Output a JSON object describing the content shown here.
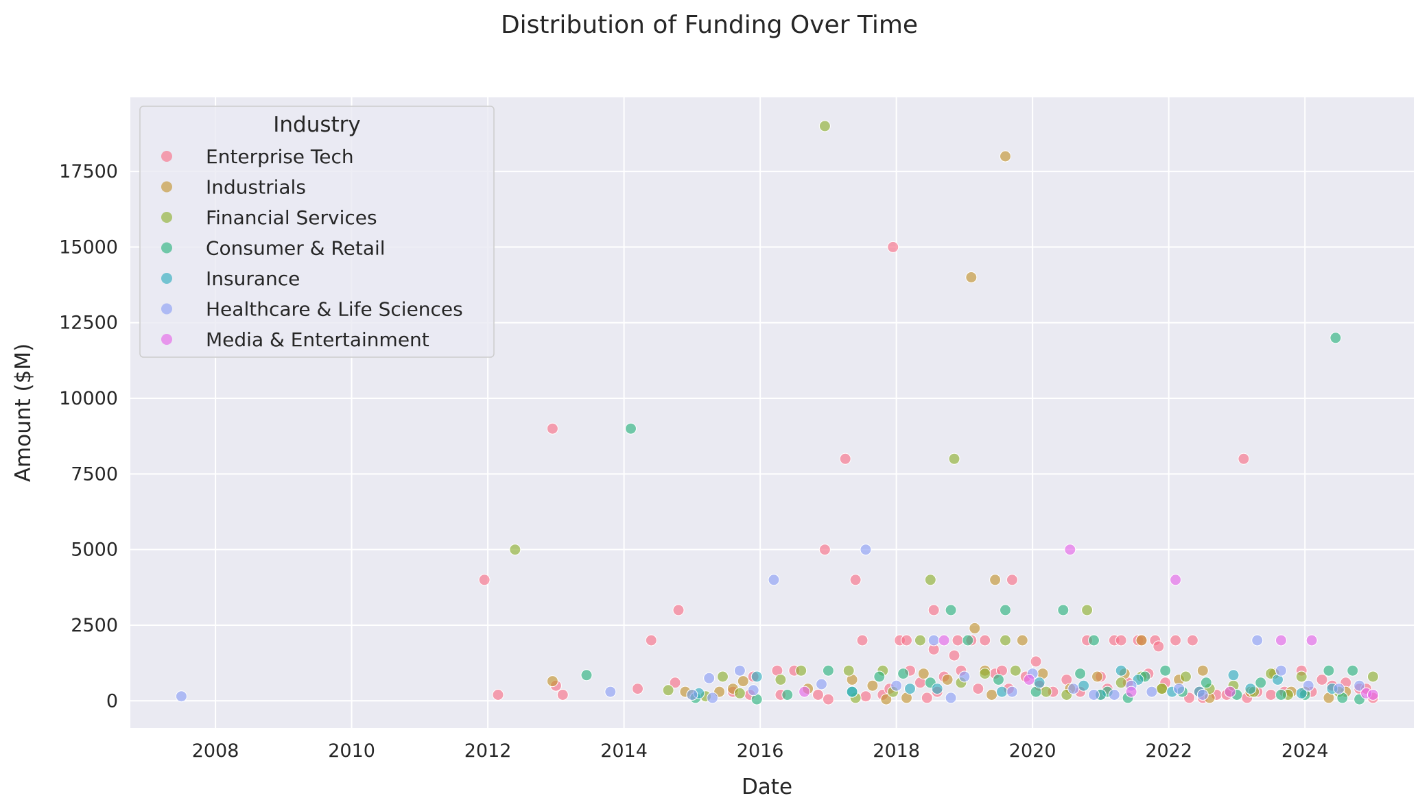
{
  "chart_data": {
    "type": "scatter",
    "title": "Distribution of Funding Over Time",
    "xlabel": "Date",
    "ylabel": "Amount ($M)",
    "x_is_date": true,
    "xlim": [
      2006.75,
      2025.6
    ],
    "ylim": [
      -900,
      19950
    ],
    "xticks": [
      2008,
      2010,
      2012,
      2014,
      2016,
      2018,
      2020,
      2022,
      2024
    ],
    "xtick_labels": [
      "2008",
      "2010",
      "2012",
      "2014",
      "2016",
      "2018",
      "2020",
      "2022",
      "2024"
    ],
    "yticks": [
      0,
      2500,
      5000,
      7500,
      10000,
      12500,
      15000,
      17500
    ],
    "ytick_labels": [
      "0",
      "2500",
      "5000",
      "7500",
      "10000",
      "12500",
      "15000",
      "17500"
    ],
    "grid": true,
    "legend": {
      "title": "Industry",
      "placement": "top-left"
    },
    "series": [
      {
        "name": "Enterprise Tech",
        "color": "#f77189",
        "points": [
          [
            2011.95,
            4000
          ],
          [
            2012.15,
            200
          ],
          [
            2012.95,
            9000
          ],
          [
            2013.0,
            500
          ],
          [
            2013.1,
            200
          ],
          [
            2014.2,
            400
          ],
          [
            2014.4,
            2000
          ],
          [
            2014.75,
            600
          ],
          [
            2014.8,
            3000
          ],
          [
            2015.6,
            300
          ],
          [
            2015.85,
            200
          ],
          [
            2015.9,
            800
          ],
          [
            2016.25,
            1000
          ],
          [
            2016.3,
            200
          ],
          [
            2016.5,
            1000
          ],
          [
            2016.85,
            200
          ],
          [
            2016.95,
            5000
          ],
          [
            2017.0,
            50
          ],
          [
            2017.25,
            8000
          ],
          [
            2017.4,
            4000
          ],
          [
            2017.5,
            2000
          ],
          [
            2017.55,
            150
          ],
          [
            2017.8,
            200
          ],
          [
            2017.9,
            400
          ],
          [
            2017.95,
            15000
          ],
          [
            2018.05,
            2000
          ],
          [
            2018.15,
            2000
          ],
          [
            2018.2,
            1000
          ],
          [
            2018.35,
            600
          ],
          [
            2018.45,
            100
          ],
          [
            2018.55,
            3000
          ],
          [
            2018.55,
            1700
          ],
          [
            2018.6,
            300
          ],
          [
            2018.7,
            800
          ],
          [
            2018.85,
            1500
          ],
          [
            2018.9,
            2000
          ],
          [
            2018.95,
            1000
          ],
          [
            2019.1,
            2000
          ],
          [
            2019.2,
            400
          ],
          [
            2019.3,
            2000
          ],
          [
            2019.45,
            900
          ],
          [
            2019.55,
            1000
          ],
          [
            2019.65,
            400
          ],
          [
            2019.7,
            4000
          ],
          [
            2019.9,
            800
          ],
          [
            2020.05,
            1300
          ],
          [
            2020.1,
            500
          ],
          [
            2020.3,
            300
          ],
          [
            2020.5,
            700
          ],
          [
            2020.7,
            300
          ],
          [
            2020.8,
            2000
          ],
          [
            2021.0,
            800
          ],
          [
            2021.1,
            400
          ],
          [
            2021.2,
            2000
          ],
          [
            2021.3,
            2000
          ],
          [
            2021.4,
            600
          ],
          [
            2021.55,
            2000
          ],
          [
            2021.6,
            2000
          ],
          [
            2021.7,
            900
          ],
          [
            2021.8,
            2000
          ],
          [
            2021.85,
            1800
          ],
          [
            2021.95,
            600
          ],
          [
            2022.1,
            2000
          ],
          [
            2022.3,
            100
          ],
          [
            2022.35,
            2000
          ],
          [
            2022.45,
            300
          ],
          [
            2022.5,
            100
          ],
          [
            2022.7,
            200
          ],
          [
            2022.85,
            200
          ],
          [
            2023.1,
            8000
          ],
          [
            2023.15,
            100
          ],
          [
            2023.3,
            300
          ],
          [
            2023.5,
            200
          ],
          [
            2023.7,
            300
          ],
          [
            2023.95,
            1000
          ],
          [
            2024.1,
            300
          ],
          [
            2024.25,
            700
          ],
          [
            2024.4,
            500
          ],
          [
            2024.6,
            600
          ],
          [
            2024.8,
            400
          ],
          [
            2024.9,
            400
          ],
          [
            2025.0,
            100
          ]
        ]
      },
      {
        "name": "Industrials",
        "color": "#c39532",
        "points": [
          [
            2012.95,
            650
          ],
          [
            2014.9,
            300
          ],
          [
            2015.4,
            300
          ],
          [
            2015.6,
            400
          ],
          [
            2015.75,
            650
          ],
          [
            2016.7,
            400
          ],
          [
            2017.35,
            700
          ],
          [
            2017.65,
            500
          ],
          [
            2017.85,
            50
          ],
          [
            2018.15,
            100
          ],
          [
            2018.4,
            900
          ],
          [
            2018.75,
            700
          ],
          [
            2019.1,
            14000
          ],
          [
            2019.15,
            2400
          ],
          [
            2019.3,
            1000
          ],
          [
            2019.4,
            200
          ],
          [
            2019.45,
            4000
          ],
          [
            2019.6,
            18000
          ],
          [
            2019.85,
            2000
          ],
          [
            2020.15,
            900
          ],
          [
            2020.55,
            400
          ],
          [
            2020.95,
            800
          ],
          [
            2021.35,
            900
          ],
          [
            2021.6,
            2000
          ],
          [
            2021.9,
            400
          ],
          [
            2022.15,
            700
          ],
          [
            2022.5,
            1000
          ],
          [
            2022.6,
            100
          ],
          [
            2022.9,
            300
          ],
          [
            2023.2,
            300
          ],
          [
            2023.55,
            900
          ],
          [
            2023.8,
            300
          ],
          [
            2024.0,
            300
          ],
          [
            2024.35,
            100
          ],
          [
            2024.6,
            300
          ]
        ]
      },
      {
        "name": "Financial Services",
        "color": "#8fb032",
        "points": [
          [
            2012.4,
            5000
          ],
          [
            2014.65,
            350
          ],
          [
            2015.0,
            200
          ],
          [
            2015.2,
            150
          ],
          [
            2015.45,
            800
          ],
          [
            2015.7,
            250
          ],
          [
            2016.3,
            700
          ],
          [
            2016.6,
            1000
          ],
          [
            2016.95,
            19000
          ],
          [
            2017.3,
            1000
          ],
          [
            2017.4,
            100
          ],
          [
            2017.8,
            1000
          ],
          [
            2017.95,
            300
          ],
          [
            2018.35,
            2000
          ],
          [
            2018.5,
            4000
          ],
          [
            2018.85,
            8000
          ],
          [
            2018.95,
            600
          ],
          [
            2019.3,
            900
          ],
          [
            2019.6,
            2000
          ],
          [
            2019.75,
            1000
          ],
          [
            2020.2,
            300
          ],
          [
            2020.5,
            200
          ],
          [
            2020.8,
            3000
          ],
          [
            2021.0,
            200
          ],
          [
            2021.3,
            600
          ],
          [
            2021.6,
            800
          ],
          [
            2021.9,
            400
          ],
          [
            2022.25,
            800
          ],
          [
            2022.6,
            400
          ],
          [
            2022.95,
            500
          ],
          [
            2023.25,
            300
          ],
          [
            2023.5,
            900
          ],
          [
            2023.75,
            200
          ],
          [
            2023.95,
            800
          ],
          [
            2024.5,
            300
          ],
          [
            2025.0,
            800
          ]
        ]
      },
      {
        "name": "Consumer & Retail",
        "color": "#2eb480",
        "points": [
          [
            2013.45,
            850
          ],
          [
            2014.1,
            9000
          ],
          [
            2015.05,
            100
          ],
          [
            2015.95,
            50
          ],
          [
            2016.4,
            200
          ],
          [
            2017.0,
            1000
          ],
          [
            2017.35,
            300
          ],
          [
            2017.75,
            800
          ],
          [
            2018.1,
            900
          ],
          [
            2018.5,
            600
          ],
          [
            2018.8,
            3000
          ],
          [
            2019.05,
            2000
          ],
          [
            2019.5,
            700
          ],
          [
            2019.6,
            3000
          ],
          [
            2020.05,
            300
          ],
          [
            2020.45,
            3000
          ],
          [
            2020.7,
            900
          ],
          [
            2020.9,
            2000
          ],
          [
            2021.1,
            300
          ],
          [
            2021.4,
            100
          ],
          [
            2021.65,
            800
          ],
          [
            2021.95,
            1000
          ],
          [
            2022.2,
            300
          ],
          [
            2022.55,
            600
          ],
          [
            2023.0,
            200
          ],
          [
            2023.35,
            600
          ],
          [
            2023.65,
            200
          ],
          [
            2024.0,
            200
          ],
          [
            2024.35,
            1000
          ],
          [
            2024.45,
            12000
          ],
          [
            2024.55,
            100
          ],
          [
            2024.7,
            1000
          ],
          [
            2024.8,
            50
          ]
        ]
      },
      {
        "name": "Insurance",
        "color": "#33aebf",
        "points": [
          [
            2015.1,
            250
          ],
          [
            2015.95,
            800
          ],
          [
            2017.35,
            300
          ],
          [
            2018.2,
            400
          ],
          [
            2018.6,
            400
          ],
          [
            2019.55,
            300
          ],
          [
            2020.1,
            600
          ],
          [
            2020.75,
            500
          ],
          [
            2021.0,
            200
          ],
          [
            2021.3,
            1000
          ],
          [
            2021.55,
            700
          ],
          [
            2022.05,
            300
          ],
          [
            2022.45,
            300
          ],
          [
            2022.95,
            850
          ],
          [
            2023.2,
            400
          ],
          [
            2023.6,
            700
          ],
          [
            2023.95,
            250
          ],
          [
            2024.4,
            400
          ]
        ]
      },
      {
        "name": "Healthcare & Life Sciences",
        "color": "#8e9ff4",
        "points": [
          [
            2007.5,
            150
          ],
          [
            2013.8,
            300
          ],
          [
            2015.0,
            200
          ],
          [
            2015.25,
            750
          ],
          [
            2015.3,
            100
          ],
          [
            2015.7,
            1000
          ],
          [
            2015.9,
            350
          ],
          [
            2016.2,
            4000
          ],
          [
            2016.9,
            550
          ],
          [
            2017.55,
            5000
          ],
          [
            2018.0,
            500
          ],
          [
            2018.55,
            2000
          ],
          [
            2018.8,
            100
          ],
          [
            2019.0,
            800
          ],
          [
            2019.7,
            300
          ],
          [
            2020.0,
            900
          ],
          [
            2020.6,
            400
          ],
          [
            2020.9,
            200
          ],
          [
            2021.2,
            200
          ],
          [
            2021.45,
            500
          ],
          [
            2021.75,
            300
          ],
          [
            2022.15,
            400
          ],
          [
            2022.5,
            200
          ],
          [
            2023.3,
            2000
          ],
          [
            2023.65,
            1000
          ],
          [
            2024.05,
            500
          ],
          [
            2024.5,
            400
          ],
          [
            2024.8,
            500
          ]
        ]
      },
      {
        "name": "Media & Entertainment",
        "color": "#e567e8",
        "points": [
          [
            2016.65,
            300
          ],
          [
            2018.7,
            2000
          ],
          [
            2019.95,
            700
          ],
          [
            2020.55,
            5000
          ],
          [
            2021.45,
            300
          ],
          [
            2022.1,
            4000
          ],
          [
            2022.9,
            300
          ],
          [
            2023.65,
            2000
          ],
          [
            2024.1,
            2000
          ],
          [
            2024.9,
            250
          ],
          [
            2025.0,
            200
          ]
        ]
      }
    ]
  }
}
